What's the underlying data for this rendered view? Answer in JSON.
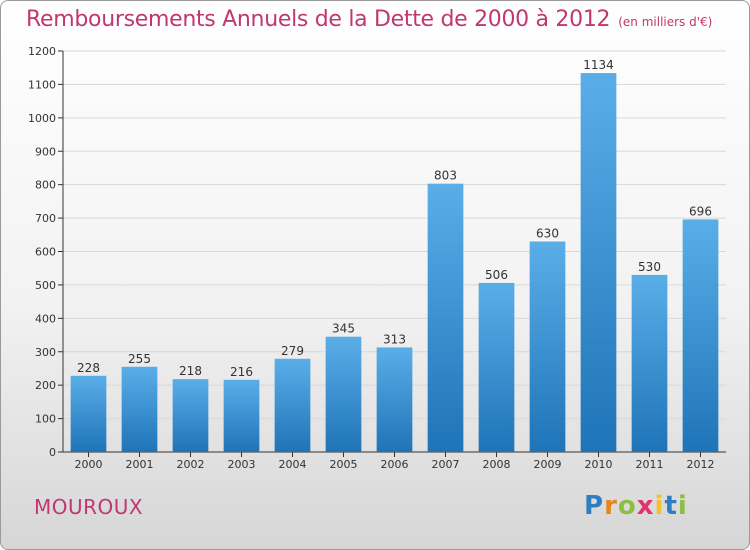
{
  "header": {
    "title": "Remboursements Annuels de la Dette de 2000 à 2012",
    "subtitle": "(en milliers d'€)"
  },
  "footer": {
    "town": "MOUROUX",
    "brand": {
      "letters": [
        "P",
        "r",
        "o",
        "x",
        "i",
        "t",
        "i"
      ],
      "colors": [
        "#2e7fc1",
        "#e8841c",
        "#8cbf3f",
        "#e0356b",
        "#f1c22e",
        "#2e7fc1",
        "#8cbf3f"
      ]
    }
  },
  "colors": {
    "title": "#c0386f",
    "bar_light": "#5aaee8",
    "bar_dark": "#1f74b8",
    "grid": "#d8d8d8",
    "axis": "#333333"
  },
  "chart_data": {
    "type": "bar",
    "categories": [
      "2000",
      "2001",
      "2002",
      "2003",
      "2004",
      "2005",
      "2006",
      "2007",
      "2008",
      "2009",
      "2010",
      "2011",
      "2012"
    ],
    "values": [
      228,
      255,
      218,
      216,
      279,
      345,
      313,
      803,
      506,
      630,
      1134,
      530,
      696
    ],
    "ylim": [
      0,
      1200
    ],
    "yticks": [
      0,
      100,
      200,
      300,
      400,
      500,
      600,
      700,
      800,
      900,
      1000,
      1100,
      1200
    ],
    "grid": true,
    "legend": "none"
  }
}
